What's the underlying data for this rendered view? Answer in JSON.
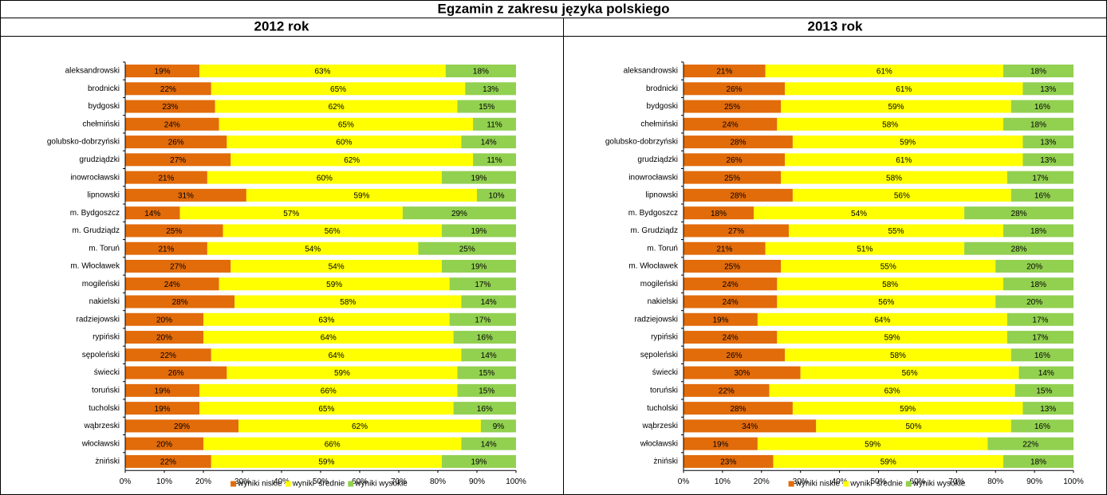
{
  "title": "Egzamin z zakresu języka polskiego",
  "chart_data": [
    {
      "type": "stacked-bar-horizontal",
      "title": "2012 rok",
      "categories": [
        "aleksandrowski",
        "brodnicki",
        "bydgoski",
        "chełmiński",
        "golubsko-dobrzyński",
        "grudziądzki",
        "inowrocławski",
        "lipnowski",
        "m. Bydgoszcz",
        "m. Grudziądz",
        "m. Toruń",
        "m. Włocławek",
        "mogileński",
        "nakielski",
        "radziejowski",
        "rypiński",
        "sępoleński",
        "świecki",
        "toruński",
        "tucholski",
        "wąbrzeski",
        "włocławski",
        "żniński"
      ],
      "series": [
        {
          "name": "wyniki niskie",
          "color": "#e26b0a",
          "values": [
            19,
            22,
            23,
            24,
            26,
            27,
            21,
            31,
            14,
            25,
            21,
            27,
            24,
            28,
            20,
            20,
            22,
            26,
            19,
            19,
            29,
            20,
            22
          ],
          "value_labels": [
            "19%",
            "22%",
            "23%",
            "24%",
            "26%",
            "27%",
            "21%",
            "31%",
            "14%",
            "25%",
            "21%",
            "27%",
            "24%",
            "28%",
            "20%",
            "20%",
            "22%",
            "26%",
            "19%",
            "19%",
            "29%",
            "20%",
            "22%"
          ]
        },
        {
          "name": "wyniki  średnie",
          "color": "#ffff00",
          "values": [
            63,
            65,
            62,
            65,
            60,
            62,
            60,
            59,
            57,
            56,
            54,
            54,
            59,
            58,
            63,
            64,
            64,
            59,
            66,
            65,
            62,
            66,
            59
          ],
          "value_labels": [
            "63%",
            "65%",
            "62%",
            "65%",
            "60%",
            "62%",
            "60%",
            "59%",
            "57%",
            "56%",
            "54%",
            "54%",
            "59%",
            "58%",
            "63%",
            "64%",
            "64%",
            "59%",
            "66%",
            "65%",
            "62%",
            "66%",
            "59%"
          ]
        },
        {
          "name": "wyniki wysokie",
          "color": "#92d050",
          "values": [
            18,
            13,
            15,
            11,
            14,
            11,
            19,
            10,
            29,
            19,
            25,
            19,
            17,
            14,
            17,
            16,
            14,
            15,
            15,
            16,
            9,
            14,
            19
          ],
          "value_labels": [
            "18%",
            "13%",
            "15%",
            "11%",
            "14%",
            "11%",
            "19%",
            "10%",
            "29%",
            "19%",
            "25%",
            "19%",
            "17%",
            "14%",
            "17%",
            "16%",
            "14%",
            "15%",
            "15%",
            "16%",
            "9%",
            "14%",
            "19%"
          ]
        }
      ],
      "xlim": [
        0,
        100
      ],
      "xticks": [
        {
          "value": 0,
          "label": "0%"
        },
        {
          "value": 10,
          "label": "10%"
        },
        {
          "value": 20,
          "label": "20%"
        },
        {
          "value": 30,
          "label": "30%"
        },
        {
          "value": 40,
          "label": "40%"
        },
        {
          "value": 50,
          "label": "50%"
        },
        {
          "value": 60,
          "label": "60%"
        },
        {
          "value": 70,
          "label": "70%"
        },
        {
          "value": 80,
          "label": "80%"
        },
        {
          "value": 90,
          "label": "90%"
        },
        {
          "value": 100,
          "label": "100%"
        }
      ],
      "legend": "bottom"
    },
    {
      "type": "stacked-bar-horizontal",
      "title": "2013 rok",
      "categories": [
        "aleksandrowski",
        "brodnicki",
        "bydgoski",
        "chełmiński",
        "golubsko-dobrzyński",
        "grudziądzki",
        "inowrocławski",
        "lipnowski",
        "m. Bydgoszcz",
        "m. Grudziądz",
        "m. Toruń",
        "m. Włocławek",
        "mogileński",
        "nakielski",
        "radziejowski",
        "rypiński",
        "sępoleński",
        "świecki",
        "toruński",
        "tucholski",
        "wąbrzeski",
        "włocławski",
        "żniński"
      ],
      "series": [
        {
          "name": "wyniki niskie",
          "color": "#e26b0a",
          "values": [
            21,
            26,
            25,
            24,
            28,
            26,
            25,
            28,
            18,
            27,
            21,
            25,
            24,
            24,
            19,
            24,
            26,
            30,
            22,
            28,
            34,
            19,
            23
          ],
          "value_labels": [
            "21%",
            "26%",
            "25%",
            "24%",
            "28%",
            "26%",
            "25%",
            "28%",
            "18%",
            "27%",
            "21%",
            "25%",
            "24%",
            "24%",
            "19%",
            "24%",
            "26%",
            "30%",
            "22%",
            "28%",
            "34%",
            "19%",
            "23%"
          ]
        },
        {
          "name": "wyniki  średnie",
          "color": "#ffff00",
          "values": [
            61,
            61,
            59,
            58,
            59,
            61,
            58,
            56,
            54,
            55,
            51,
            55,
            58,
            56,
            64,
            59,
            58,
            56,
            63,
            59,
            50,
            59,
            59
          ],
          "value_labels": [
            "61%",
            "61%",
            "59%",
            "58%",
            "59%",
            "61%",
            "58%",
            "56%",
            "54%",
            "55%",
            "51%",
            "55%",
            "58%",
            "56%",
            "64%",
            "59%",
            "58%",
            "56%",
            "63%",
            "59%",
            "50%",
            "59%",
            "59%"
          ]
        },
        {
          "name": "wyniki wysokie",
          "color": "#92d050",
          "values": [
            18,
            13,
            16,
            18,
            13,
            13,
            17,
            16,
            28,
            18,
            28,
            20,
            18,
            20,
            17,
            17,
            16,
            14,
            15,
            13,
            16,
            22,
            18
          ],
          "value_labels": [
            "18%",
            "13%",
            "16%",
            "18%",
            "13%",
            "13%",
            "17%",
            "16%",
            "28%",
            "18%",
            "28%",
            "20%",
            "18%",
            "20%",
            "17%",
            "17%",
            "16%",
            "14%",
            "15%",
            "13%",
            "16%",
            "22%",
            "18%"
          ]
        }
      ],
      "xlim": [
        0,
        100
      ],
      "xticks": [
        {
          "value": 0,
          "label": "0%"
        },
        {
          "value": 10,
          "label": "10%"
        },
        {
          "value": 20,
          "label": "20%"
        },
        {
          "value": 30,
          "label": "30%"
        },
        {
          "value": 40,
          "label": "40%"
        },
        {
          "value": 50,
          "label": "50%"
        },
        {
          "value": 60,
          "label": "60%"
        },
        {
          "value": 70,
          "label": "70%"
        },
        {
          "value": 80,
          "label": "80%"
        },
        {
          "value": 90,
          "label": "90%"
        },
        {
          "value": 100,
          "label": "100%"
        }
      ],
      "legend": "bottom"
    }
  ]
}
